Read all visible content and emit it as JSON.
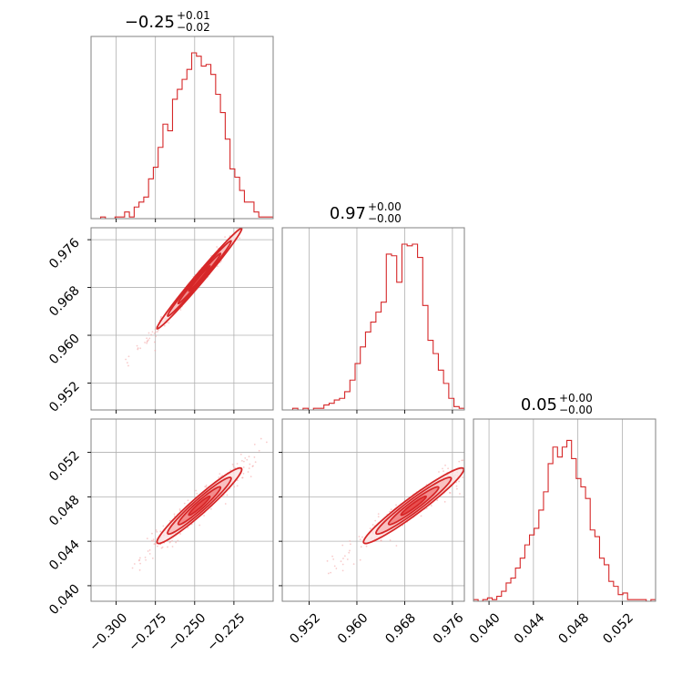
{
  "chart_data": {
    "type": "corner",
    "accent_color": "#d62728",
    "grid": true,
    "titles": [
      {
        "main": "−0.25",
        "upper": "+0.01",
        "lower": "−0.02"
      },
      {
        "main": "0.97",
        "upper": "+0.00",
        "lower": "−0.00"
      },
      {
        "main": "0.05",
        "upper": "+0.00",
        "lower": "−0.00"
      }
    ],
    "tick_labels": {
      "p0": [
        "−0.300",
        "−0.275",
        "−0.250",
        "−0.225"
      ],
      "p1": [
        "0.952",
        "0.960",
        "0.968",
        "0.976"
      ],
      "p2": [
        "0.040",
        "0.044",
        "0.048",
        "0.052"
      ]
    },
    "ticks": {
      "p0": [
        -0.3,
        -0.275,
        -0.25,
        -0.225
      ],
      "p1": [
        0.952,
        0.96,
        0.968,
        0.976
      ],
      "p2": [
        0.04,
        0.044,
        0.048,
        0.052
      ]
    },
    "ranges": {
      "p0": [
        -0.316,
        -0.2
      ],
      "p1": [
        0.9475,
        0.978
      ],
      "p2": [
        0.0386,
        0.055
      ]
    },
    "histograms": {
      "p0": [
        0,
        0,
        0.01,
        0,
        0,
        0.01,
        0.01,
        0.04,
        0.01,
        0.07,
        0.1,
        0.13,
        0.24,
        0.31,
        0.43,
        0.57,
        0.53,
        0.72,
        0.78,
        0.84,
        0.9,
        1.0,
        0.98,
        0.92,
        0.93,
        0.87,
        0.75,
        0.64,
        0.48,
        0.3,
        0.25,
        0.17,
        0.1,
        0.1,
        0.04,
        0.01,
        0.01,
        0.01
      ],
      "p1": [
        0,
        0,
        0.01,
        0,
        0.01,
        0,
        0.01,
        0.01,
        0.03,
        0.04,
        0.06,
        0.07,
        0.11,
        0.18,
        0.28,
        0.38,
        0.47,
        0.53,
        0.59,
        0.65,
        0.94,
        0.93,
        0.77,
        1.0,
        0.99,
        1.0,
        0.92,
        0.63,
        0.42,
        0.34,
        0.24,
        0.16,
        0.07,
        0.02,
        0.01
      ],
      "p2": [
        0.01,
        0,
        0.01,
        0.02,
        0.01,
        0.03,
        0.06,
        0.11,
        0.14,
        0.2,
        0.26,
        0.34,
        0.4,
        0.44,
        0.55,
        0.66,
        0.83,
        0.93,
        0.87,
        0.93,
        0.97,
        0.86,
        0.74,
        0.69,
        0.62,
        0.43,
        0.39,
        0.26,
        0.22,
        0.12,
        0.09,
        0.04,
        0.05,
        0.01,
        0.01,
        0.01,
        0.01,
        0,
        0.01
      ]
    },
    "correlations": {
      "p0_p1": {
        "center": [
          -0.247,
          0.9695
        ],
        "sd": [
          0.0135,
          0.0042
        ],
        "rho": 0.99
      },
      "p0_p2": {
        "center": [
          -0.247,
          0.0472
        ],
        "sd": [
          0.0135,
          0.0017
        ],
        "rho": 0.96
      },
      "p1_p2": {
        "center": [
          0.9695,
          0.0472
        ],
        "sd": [
          0.0042,
          0.0017
        ],
        "rho": 0.96
      }
    }
  }
}
